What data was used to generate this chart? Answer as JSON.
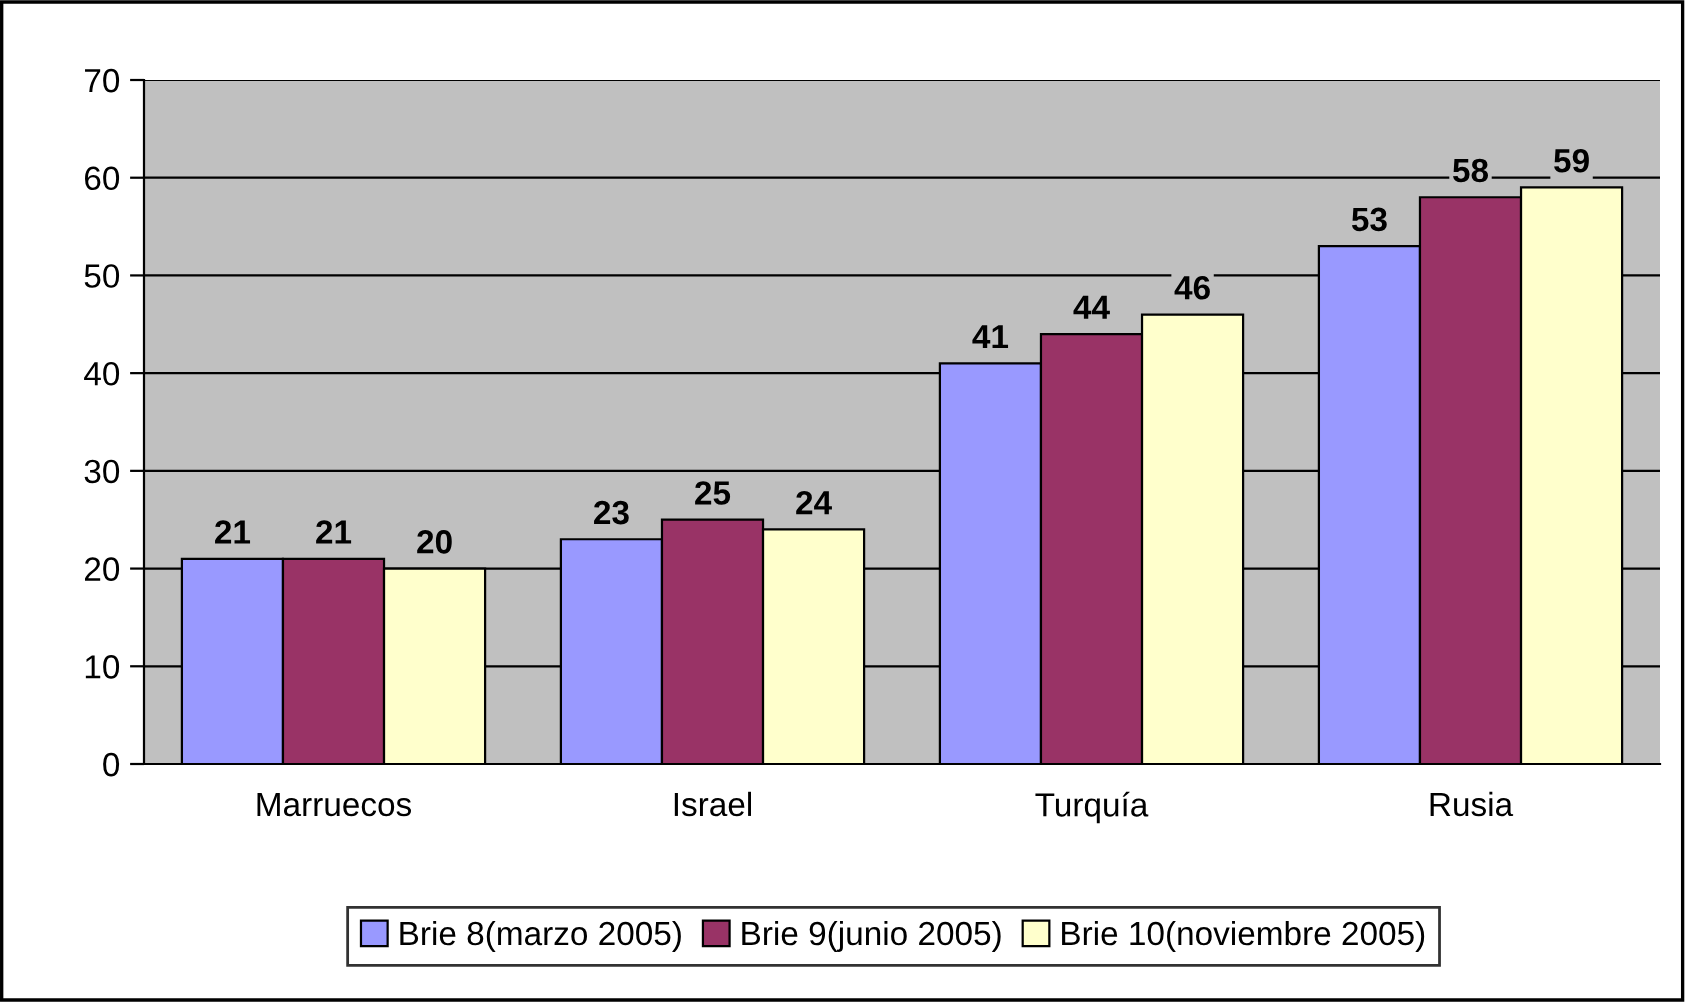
{
  "chart_data": {
    "type": "bar",
    "categories": [
      "Marruecos",
      "Israel",
      "Turquía",
      "Rusia"
    ],
    "series": [
      {
        "name": "Brie 8(marzo 2005)",
        "color": "#9999ff",
        "values": [
          21,
          23,
          41,
          53
        ]
      },
      {
        "name": "Brie 9(junio 2005)",
        "color": "#993366",
        "values": [
          21,
          25,
          44,
          58
        ]
      },
      {
        "name": "Brie 10(noviembre 2005)",
        "color": "#ffffcc",
        "values": [
          20,
          24,
          46,
          59
        ]
      }
    ],
    "ylim": [
      0,
      70
    ],
    "yticks": [
      0,
      10,
      20,
      30,
      40,
      50,
      60,
      70
    ],
    "grid": "y",
    "legend": "bottom",
    "data_labels": true
  }
}
